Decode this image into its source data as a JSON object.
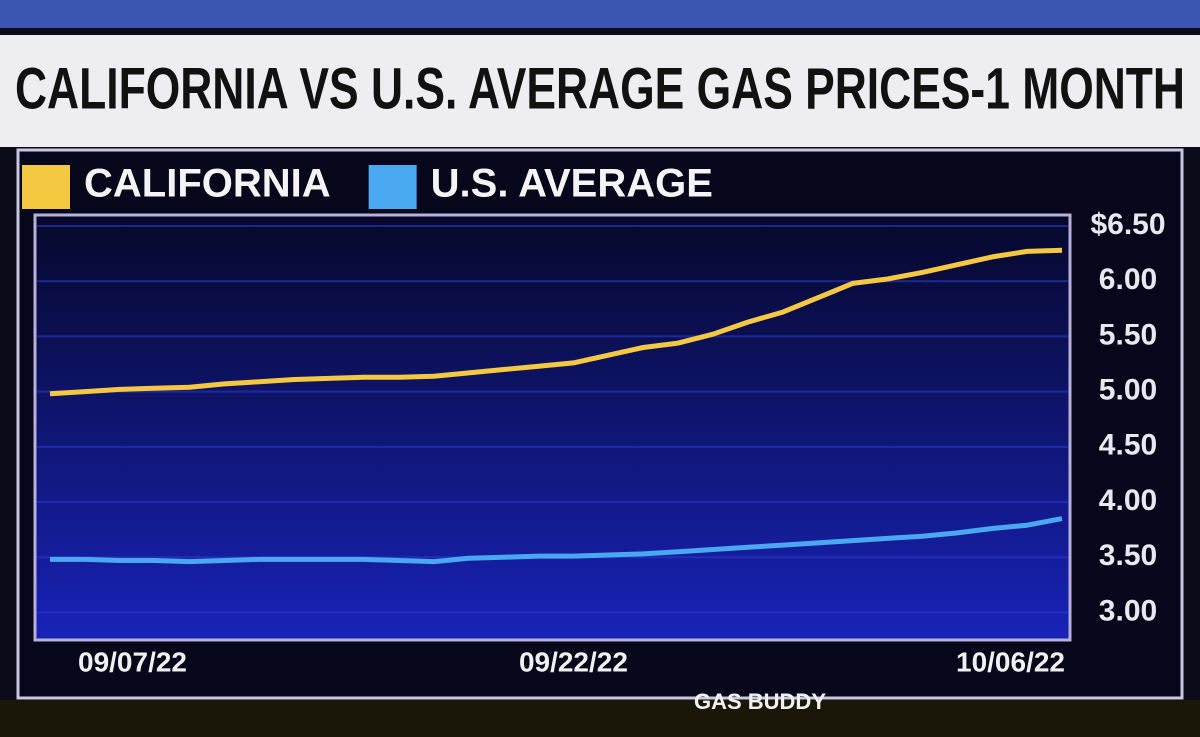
{
  "chart_data": {
    "type": "line",
    "title": "CALIFORNIA VS U.S. AVERAGE GAS PRICES-1 MONTH",
    "source": "GAS BUDDY",
    "categories": [
      "09/07/22",
      null,
      null,
      null,
      null,
      null,
      null,
      null,
      null,
      null,
      null,
      null,
      null,
      null,
      null,
      "09/22/22",
      null,
      null,
      null,
      null,
      null,
      null,
      null,
      null,
      null,
      null,
      null,
      null,
      null,
      "10/06/22"
    ],
    "series": [
      {
        "name": "CALIFORNIA",
        "color": "#f5c842",
        "values": [
          4.98,
          5.0,
          5.02,
          5.03,
          5.04,
          5.07,
          5.09,
          5.11,
          5.12,
          5.13,
          5.13,
          5.14,
          5.17,
          5.2,
          5.23,
          5.26,
          5.33,
          5.4,
          5.44,
          5.52,
          5.63,
          5.72,
          5.85,
          5.98,
          6.02,
          6.08,
          6.15,
          6.22,
          6.27,
          6.28
        ]
      },
      {
        "name": "U.S. AVERAGE",
        "color": "#4aa8f0",
        "values": [
          3.48,
          3.48,
          3.47,
          3.47,
          3.46,
          3.47,
          3.48,
          3.48,
          3.48,
          3.48,
          3.47,
          3.46,
          3.49,
          3.5,
          3.51,
          3.51,
          3.52,
          3.53,
          3.55,
          3.57,
          3.59,
          3.61,
          3.63,
          3.65,
          3.67,
          3.69,
          3.72,
          3.76,
          3.79,
          3.85
        ]
      }
    ],
    "ylim": [
      2.75,
      6.6
    ],
    "yticks": [
      {
        "value": 6.5,
        "label": "$6.50"
      },
      {
        "value": 6,
        "label": "6.00"
      },
      {
        "value": 5.5,
        "label": "5.50"
      },
      {
        "value": 5,
        "label": "5.00"
      },
      {
        "value": 4.5,
        "label": "4.50"
      },
      {
        "value": 4,
        "label": "4.00"
      },
      {
        "value": 3.5,
        "label": "3.50"
      },
      {
        "value": 3,
        "label": "3.00"
      }
    ],
    "grid": true
  }
}
